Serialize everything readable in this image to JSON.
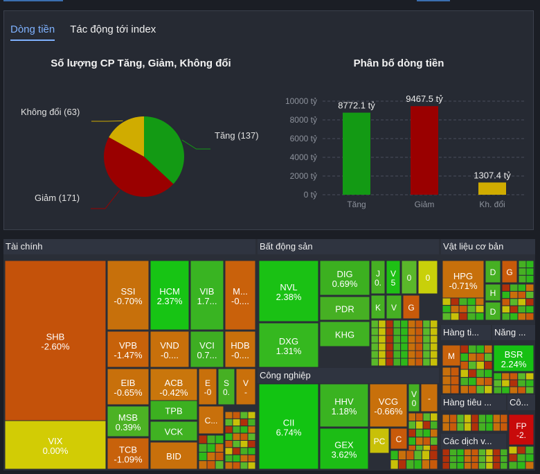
{
  "tabs": [
    {
      "label": "Dòng tiền",
      "active": true
    },
    {
      "label": "Tác động tới index",
      "active": false
    }
  ],
  "pie_chart": {
    "title": "Số lượng CP Tăng, Giảm, Không đổi",
    "labels": {
      "up": "Tăng (137)",
      "down": "Giảm (171)",
      "flat": "Không đổi (63)"
    }
  },
  "bar_chart": {
    "title": "Phân bố dòng tiền"
  },
  "chart_data": [
    {
      "type": "pie",
      "title": "Số lượng CP Tăng, Giảm, Không đổi",
      "categories": [
        "Tăng",
        "Giảm",
        "Không đổi"
      ],
      "values": [
        137,
        171,
        63
      ],
      "colors": [
        "#139a14",
        "#9a0000",
        "#d0ac00"
      ]
    },
    {
      "type": "bar",
      "title": "Phân bố dòng tiền",
      "categories": [
        "Tăng",
        "Giảm",
        "Kh. đổi"
      ],
      "values": [
        8772.1,
        9467.5,
        1307.4
      ],
      "data_labels": [
        "8772.1 tỷ",
        "9467.5 tỷ",
        "1307.4 tỷ"
      ],
      "colors": [
        "#139a14",
        "#9a0000",
        "#d0ac00"
      ],
      "ylim": [
        0,
        10000
      ],
      "yticks": [
        "0 tỷ",
        "2000 tỷ",
        "4000 tỷ",
        "6000 tỷ",
        "8000 tỷ",
        "10000 tỷ"
      ],
      "grid": true
    }
  ],
  "treemap": {
    "sections": [
      {
        "name": "Tài chính"
      },
      {
        "name": "Bất động sản"
      },
      {
        "name": "Vật liệu cơ bản"
      },
      {
        "name": "Công nghiệp"
      },
      {
        "name": "Hàng ti..."
      },
      {
        "name": "Năng ..."
      },
      {
        "name": "Hàng tiêu ..."
      },
      {
        "name": "Cô..."
      },
      {
        "name": "Các dịch v..."
      }
    ],
    "tiles": [
      {
        "ticker": "SHB",
        "change": "-2.60%",
        "color": "#c4520a"
      },
      {
        "ticker": "VIX",
        "change": "0.00%",
        "color": "#d2cc05"
      },
      {
        "ticker": "SSI",
        "change": "-0.70%",
        "color": "#c7700b"
      },
      {
        "ticker": "HCM",
        "change": "2.37%",
        "color": "#17c414"
      },
      {
        "ticker": "VIB",
        "change": "1.7...",
        "color": "#39b422"
      },
      {
        "ticker": "M...",
        "change": "-0....",
        "color": "#c9610b"
      },
      {
        "ticker": "VPB",
        "change": "-1.47%",
        "color": "#c7620a"
      },
      {
        "ticker": "VND",
        "change": "-0....",
        "color": "#c8700b"
      },
      {
        "ticker": "VCI",
        "change": "0.7...",
        "color": "#3eae22"
      },
      {
        "ticker": "HDB",
        "change": "-0....",
        "color": "#c8700b"
      },
      {
        "ticker": "EIB",
        "change": "-0.65%",
        "color": "#c8700b"
      },
      {
        "ticker": "ACB",
        "change": "-0.42%",
        "color": "#c9760c"
      },
      {
        "ticker": "E",
        "change": "-0",
        "color": "#c8700b"
      },
      {
        "ticker": "S",
        "change": "0.",
        "color": "#46b023"
      },
      {
        "ticker": "V",
        "change": "-",
        "color": "#c9700b"
      },
      {
        "ticker": "MSB",
        "change": "0.39%",
        "color": "#4cb224"
      },
      {
        "ticker": "TPB",
        "change": "",
        "color": "#3cb020"
      },
      {
        "ticker": "VCK",
        "change": "",
        "color": "#40b222"
      },
      {
        "ticker": "C...",
        "change": "",
        "color": "#c8700b"
      },
      {
        "ticker": "TCB",
        "change": "-1.09%",
        "color": "#c8620b"
      },
      {
        "ticker": "BID",
        "change": "",
        "color": "#c8700b"
      },
      {
        "ticker": "NVL",
        "change": "2.38%",
        "color": "#1ac114"
      },
      {
        "ticker": "DIG",
        "change": "0.69%",
        "color": "#3cb020"
      },
      {
        "ticker": "PDR",
        "change": "",
        "color": "#46b023"
      },
      {
        "ticker": "KHG",
        "change": "",
        "color": "#40b222"
      },
      {
        "ticker": "DXG",
        "change": "1.31%",
        "color": "#35b81f"
      },
      {
        "ticker": "J",
        "change": "0.",
        "color": "#46b023"
      },
      {
        "ticker": "V",
        "change": "5",
        "color": "#1ec015"
      },
      {
        "ticker": "0",
        "change": "",
        "color": "#5ab82a"
      },
      {
        "ticker": "0",
        "change": "",
        "color": "#c8d00a"
      },
      {
        "ticker": "K",
        "change": "",
        "color": "#46b023"
      },
      {
        "ticker": "V",
        "change": "",
        "color": "#46b023"
      },
      {
        "ticker": "G",
        "change": "",
        "color": "#c85a0a"
      },
      {
        "ticker": "CII",
        "change": "6.74%",
        "color": "#12c412"
      },
      {
        "ticker": "HHV",
        "change": "1.18%",
        "color": "#3ab321"
      },
      {
        "ticker": "VCG",
        "change": "-0.66%",
        "color": "#c8700b"
      },
      {
        "ticker": "V",
        "change": "0",
        "color": "#46b023"
      },
      {
        "ticker": "-",
        "change": "",
        "color": "#c8700b"
      },
      {
        "ticker": "GEX",
        "change": "3.62%",
        "color": "#1cbd15"
      },
      {
        "ticker": "PC",
        "change": "",
        "color": "#c8c008"
      },
      {
        "ticker": "C",
        "change": "",
        "color": "#c85a0a"
      },
      {
        "ticker": "HPG",
        "change": "-0.71%",
        "color": "#c7700b"
      },
      {
        "ticker": "D",
        "change": "",
        "color": "#46b023"
      },
      {
        "ticker": "G",
        "change": "",
        "color": "#c85a0a"
      },
      {
        "ticker": "H",
        "change": "",
        "color": "#46b023"
      },
      {
        "ticker": "D",
        "change": "",
        "color": "#46b023"
      },
      {
        "ticker": "M",
        "change": "",
        "color": "#c8620b"
      },
      {
        "ticker": "BSR",
        "change": "2.24%",
        "color": "#16c013"
      },
      {
        "ticker": "FP",
        "change": "-2.",
        "color": "#c80a0a"
      }
    ]
  }
}
